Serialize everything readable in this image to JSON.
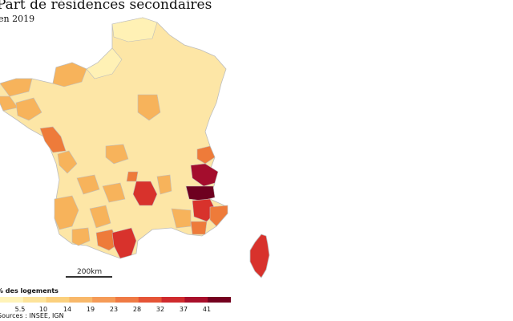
{
  "title": "Part de résidences secondaires",
  "subtitle": "en 2019",
  "scale": {
    "label": "200km"
  },
  "legend": {
    "title": "% des logements",
    "ticks": [
      "5.5",
      "10",
      "14",
      "19",
      "23",
      "28",
      "32",
      "37",
      "41"
    ],
    "colors": [
      "#fff3b8",
      "#fde39a",
      "#fbd07d",
      "#f8b86a",
      "#f59b57",
      "#ef7a44",
      "#e55436",
      "#cf2a2d",
      "#a80f2a",
      "#74001f"
    ]
  },
  "sources": "Sources : INSEE, IGN",
  "colors": {
    "land": "#fbe3a0",
    "border": "#cfcfcf",
    "light": "#fff1b5",
    "mid": "#f7b35b",
    "orange": "#ee7b3a",
    "red": "#d8322c",
    "dark_red": "#a40d2d",
    "darkest": "#6e0020"
  }
}
